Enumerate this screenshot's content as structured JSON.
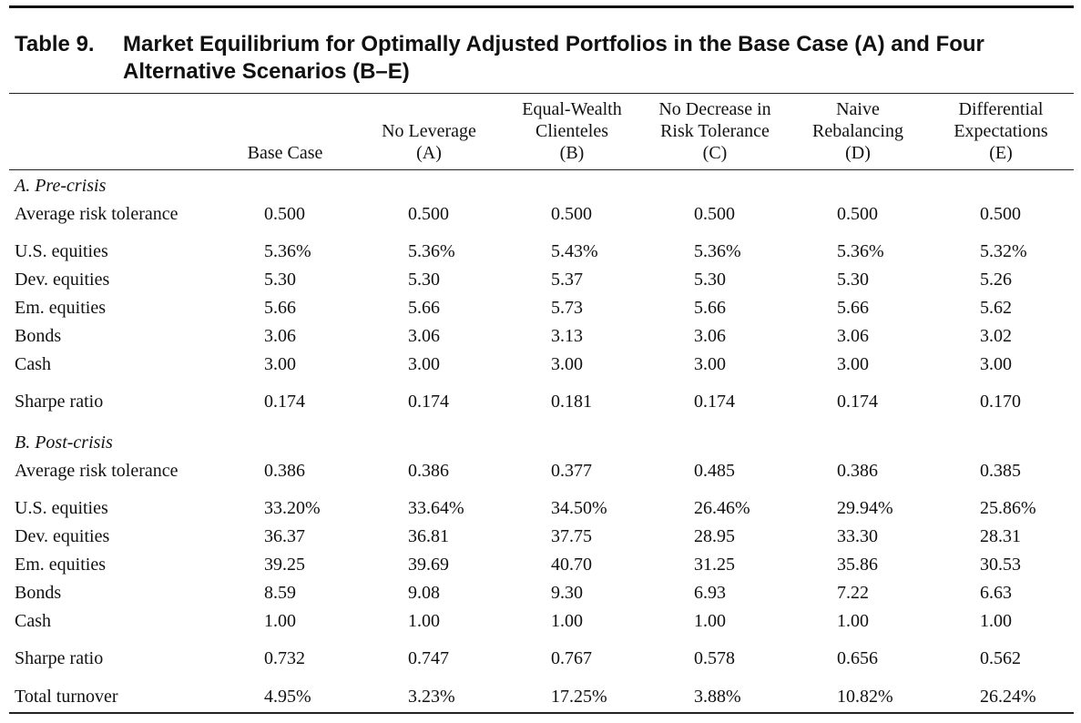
{
  "table": {
    "number": "Table 9.",
    "title": "Market Equilibrium for Optimally Adjusted Portfolios in the Base Case (A) and Four Alternative Scenarios (B–E)",
    "columns": [
      {
        "lines": [
          "",
          "",
          "Base Case"
        ]
      },
      {
        "lines": [
          "",
          "No Leverage",
          "(A)"
        ]
      },
      {
        "lines": [
          "Equal-Wealth",
          "Clienteles",
          "(B)"
        ]
      },
      {
        "lines": [
          "No Decrease in",
          "Risk Tolerance",
          "(C)"
        ]
      },
      {
        "lines": [
          "Naive",
          "Rebalancing",
          "(D)"
        ]
      },
      {
        "lines": [
          "Differential",
          "Expectations",
          "(E)"
        ]
      }
    ],
    "sections": [
      {
        "title": "A. Pre-crisis",
        "rows": [
          {
            "label": "Average risk tolerance",
            "values": [
              "0.500",
              "0.500",
              "0.500",
              "0.500",
              "0.500",
              "0.500"
            ]
          },
          {
            "label": "U.S. equities",
            "values": [
              "5.36%",
              "5.36%",
              "5.43%",
              "5.36%",
              "5.36%",
              "5.32%"
            ]
          },
          {
            "label": "Dev. equities",
            "values": [
              "5.30",
              "5.30",
              "5.37",
              "5.30",
              "5.30",
              "5.26"
            ]
          },
          {
            "label": "Em. equities",
            "values": [
              "5.66",
              "5.66",
              "5.73",
              "5.66",
              "5.66",
              "5.62"
            ]
          },
          {
            "label": "Bonds",
            "values": [
              "3.06",
              "3.06",
              "3.13",
              "3.06",
              "3.06",
              "3.02"
            ]
          },
          {
            "label": "Cash",
            "values": [
              "3.00",
              "3.00",
              "3.00",
              "3.00",
              "3.00",
              "3.00"
            ]
          },
          {
            "label": "Sharpe ratio",
            "values": [
              "0.174",
              "0.174",
              "0.181",
              "0.174",
              "0.174",
              "0.170"
            ]
          }
        ]
      },
      {
        "title": "B. Post-crisis",
        "rows": [
          {
            "label": "Average risk tolerance",
            "values": [
              "0.386",
              "0.386",
              "0.377",
              "0.485",
              "0.386",
              "0.385"
            ]
          },
          {
            "label": "U.S. equities",
            "values": [
              "33.20%",
              "33.64%",
              "34.50%",
              "26.46%",
              "29.94%",
              "25.86%"
            ]
          },
          {
            "label": "Dev. equities",
            "values": [
              "36.37",
              "36.81",
              "37.75",
              "28.95",
              "33.30",
              "28.31"
            ]
          },
          {
            "label": "Em. equities",
            "values": [
              "39.25",
              "39.69",
              "40.70",
              "31.25",
              "35.86",
              "30.53"
            ]
          },
          {
            "label": "Bonds",
            "values": [
              "8.59",
              "9.08",
              "9.30",
              "6.93",
              "7.22",
              "6.63"
            ]
          },
          {
            "label": "Cash",
            "values": [
              "1.00",
              "1.00",
              "1.00",
              "1.00",
              "1.00",
              "1.00"
            ]
          },
          {
            "label": "Sharpe ratio",
            "values": [
              "0.732",
              "0.747",
              "0.767",
              "0.578",
              "0.656",
              "0.562"
            ]
          },
          {
            "label": "Total turnover",
            "values": [
              "4.95%",
              "3.23%",
              "17.25%",
              "3.88%",
              "10.82%",
              "26.24%"
            ]
          }
        ]
      }
    ]
  }
}
